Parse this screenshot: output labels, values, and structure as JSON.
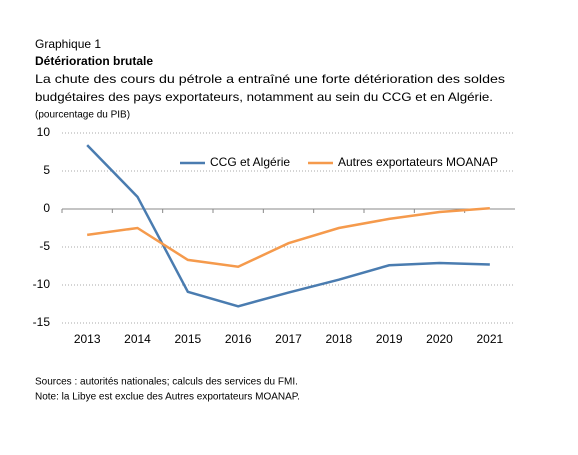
{
  "chart_data": {
    "type": "line",
    "label": "Graphique 1",
    "title": "Détérioration brutale",
    "subtitle": [
      "La chute des cours du pétrole a entraîné une forte détérioration des soldes",
      "budgétaires des pays exportateurs, notamment au sein du CCG et en Algérie."
    ],
    "y_label": "(pourcentage du PIB)",
    "categories": [
      "2013",
      "2014",
      "2015",
      "2016",
      "2017",
      "2018",
      "2019",
      "2020",
      "2021"
    ],
    "series": [
      {
        "name": "CCG et Algérie",
        "color": "#4a7cb0",
        "values": [
          8.4,
          1.6,
          -10.9,
          -12.8,
          -11.0,
          -9.3,
          -7.4,
          -7.1,
          -7.3
        ]
      },
      {
        "name": "Autres exportateurs MOANAP",
        "color": "#f59a4c",
        "values": [
          -3.4,
          -2.5,
          -6.7,
          -7.6,
          -4.5,
          -2.5,
          -1.3,
          -0.4,
          0.1
        ]
      }
    ],
    "ylim": [
      -15,
      10
    ],
    "yticks": [
      -15,
      -10,
      -5,
      0,
      5,
      10
    ],
    "grid": true,
    "legend": "top-right",
    "notes": [
      "Sources : autorités nationales; calculs des services du FMI.",
      "Note:  la Libye est exclue des Autres exportateurs MOANAP."
    ]
  }
}
